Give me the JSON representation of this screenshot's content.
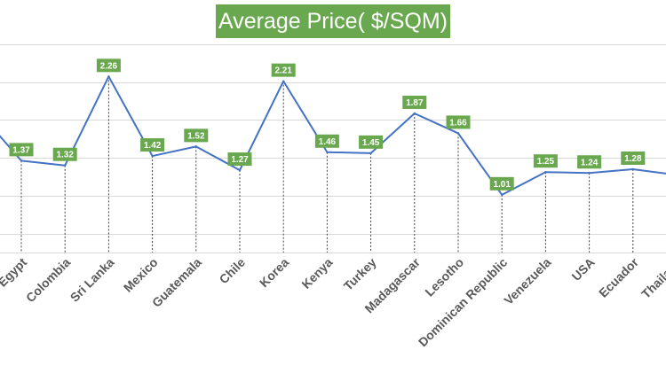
{
  "chart_data": {
    "type": "line",
    "title": "Average Price( $/SQM)",
    "xlabel": "",
    "ylabel": "",
    "ylim": [
      0.4,
      2.6
    ],
    "grid": true,
    "legend": "none",
    "categories": [
      "Egypt",
      "Colombia",
      "Sri Lanka",
      "Mexico",
      "Guatemala",
      "Chile",
      "Korea",
      "Kenya",
      "Turkey",
      "Madagascar",
      "Lesotho",
      "Dominican Republic",
      "Venezuela",
      "USA",
      "Ecuador",
      "Thailand"
    ],
    "values": [
      1.37,
      1.32,
      2.26,
      1.42,
      1.52,
      1.27,
      2.21,
      1.46,
      1.45,
      1.87,
      1.66,
      1.01,
      1.25,
      1.24,
      1.28,
      1.22
    ],
    "data_labels": [
      "1.37",
      "1.32",
      "2.26",
      "1.42",
      "1.52",
      "1.27",
      "2.21",
      "1.46",
      "1.45",
      "1.87",
      "1.66",
      "1.01",
      "1.25",
      "1.24",
      "1.28",
      ""
    ],
    "offscreen_left_value": 1.9,
    "colors": {
      "line": "#4472c4",
      "label_bg": "#6aa84f",
      "label_text": "#ffffff",
      "grid": "#d9d9d9",
      "drop_line": "#404040",
      "axis_text": "#595959"
    }
  }
}
